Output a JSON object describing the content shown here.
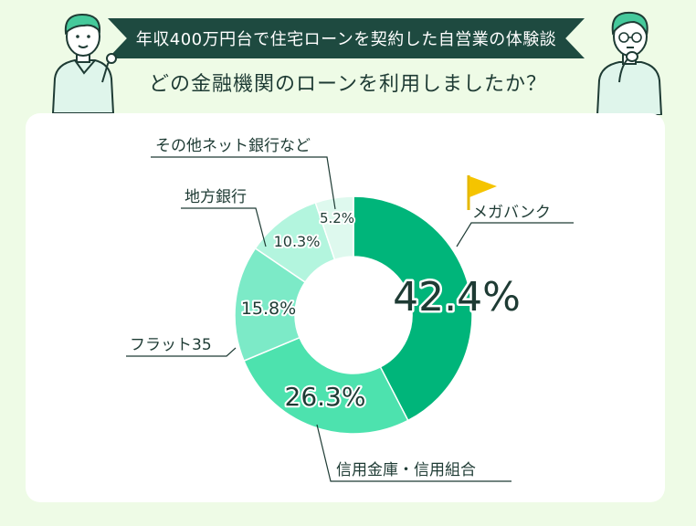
{
  "header": {
    "banner": "年収400万円台で住宅ローンを契約した自営業の体験談",
    "question": "どの金融機関のローンを利用しましたか？"
  },
  "chart_data": {
    "type": "pie",
    "donut": true,
    "categories": [
      "メガバンク",
      "信用金庫・信用組合",
      "フラット35",
      "地方銀行",
      "その他ネット銀行など"
    ],
    "values": [
      42.4,
      26.3,
      15.8,
      10.3,
      5.2
    ],
    "value_labels": [
      "42.4%",
      "26.3%",
      "15.8%",
      "10.3%",
      "5.2%"
    ],
    "colors": [
      "#00b57a",
      "#4de2ae",
      "#7ceac7",
      "#b3f5de",
      "#def9ee"
    ],
    "title": "",
    "top_category_icon": "flag-icon"
  }
}
